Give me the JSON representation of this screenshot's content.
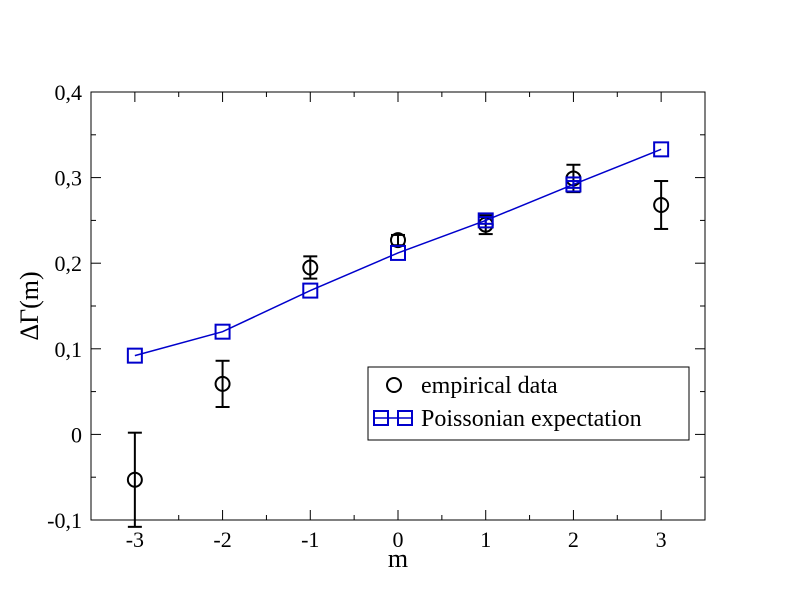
{
  "chart_data": {
    "type": "scatter",
    "title": "",
    "xlabel": "m",
    "ylabel": "ΔΓ(m)",
    "xlim": [
      -3.5,
      3.5
    ],
    "ylim": [
      -0.1,
      0.4
    ],
    "xticks": [
      -3,
      -2,
      -1,
      0,
      1,
      2,
      3
    ],
    "xtick_labels": [
      "-3",
      "-2",
      "-1",
      "0",
      "1",
      "2",
      "3"
    ],
    "yticks": [
      -0.1,
      0,
      0.1,
      0.2,
      0.3,
      0.4
    ],
    "ytick_labels": [
      "-0,1",
      "0",
      "0,1",
      "0,2",
      "0,3",
      "0,4"
    ],
    "grid": false,
    "legend_position": "lower-right",
    "series": [
      {
        "name": "empirical data",
        "marker": "circle",
        "color": "#000000",
        "line": false,
        "x": [
          -3,
          -2,
          -1,
          0,
          1,
          2,
          3
        ],
        "y": [
          -0.053,
          0.059,
          0.195,
          0.227,
          0.245,
          0.299,
          0.268
        ],
        "yerr": [
          0.055,
          0.027,
          0.013,
          0.006,
          0.011,
          0.016,
          0.028
        ]
      },
      {
        "name": "Poissonian expectation",
        "marker": "square",
        "color": "#0000cc",
        "line": true,
        "x": [
          -3,
          -2,
          -1,
          0,
          1,
          2,
          3
        ],
        "y": [
          0.092,
          0.12,
          0.168,
          0.212,
          0.25,
          0.292,
          0.333
        ],
        "yerr": [
          0,
          0,
          0,
          0,
          0.004,
          0.004,
          0
        ]
      }
    ]
  }
}
